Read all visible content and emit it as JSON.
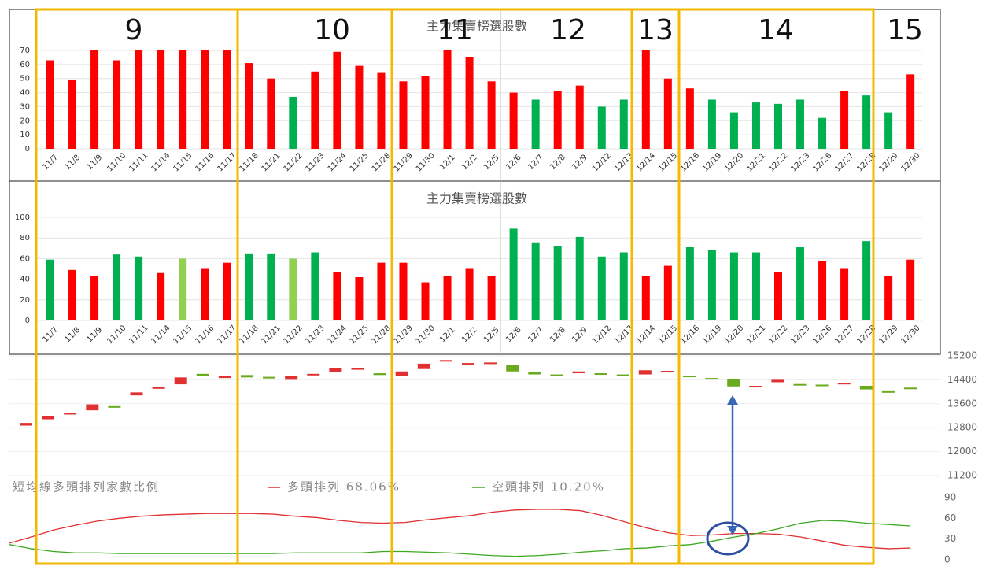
{
  "chart_data": [
    {
      "type": "bar",
      "title": "主力集賣榜選股數",
      "categories": [
        "11/7",
        "11/8",
        "11/9",
        "11/10",
        "11/11",
        "11/14",
        "11/15",
        "11/16",
        "11/17",
        "11/18",
        "11/21",
        "11/22",
        "11/23",
        "11/24",
        "11/25",
        "11/28",
        "11/29",
        "11/30",
        "12/1",
        "12/2",
        "12/5",
        "12/6",
        "12/7",
        "12/8",
        "12/9",
        "12/12",
        "12/13",
        "12/14",
        "12/15",
        "12/16",
        "12/19",
        "12/20",
        "12/21",
        "12/22",
        "12/23",
        "12/26",
        "12/27",
        "12/28",
        "12/29",
        "12/30"
      ],
      "values": [
        63,
        49,
        70,
        63,
        70,
        70,
        70,
        70,
        70,
        61,
        50,
        37,
        55,
        69,
        59,
        54,
        48,
        52,
        70,
        65,
        48,
        40,
        35,
        41,
        45,
        30,
        35,
        70,
        50,
        43,
        35,
        26,
        33,
        32,
        35,
        22,
        41,
        38,
        26,
        53
      ],
      "colors": [
        "#ff0000",
        "#ff0000",
        "#ff0000",
        "#ff0000",
        "#ff0000",
        "#ff0000",
        "#ff0000",
        "#ff0000",
        "#ff0000",
        "#ff0000",
        "#ff0000",
        "#00b050",
        "#ff0000",
        "#ff0000",
        "#ff0000",
        "#ff0000",
        "#ff0000",
        "#ff0000",
        "#ff0000",
        "#ff0000",
        "#ff0000",
        "#ff0000",
        "#00b050",
        "#ff0000",
        "#ff0000",
        "#00b050",
        "#00b050",
        "#ff0000",
        "#ff0000",
        "#ff0000",
        "#00b050",
        "#00b050",
        "#00b050",
        "#00b050",
        "#00b050",
        "#00b050",
        "#ff0000",
        "#00b050",
        "#00b050",
        "#ff0000"
      ],
      "ylim": [
        0,
        70
      ],
      "yticks": [
        0,
        10,
        20,
        30,
        40,
        50,
        60,
        70
      ],
      "grid": true
    },
    {
      "type": "bar",
      "title": "主力集賣榜選股數",
      "categories": [
        "11/7",
        "11/8",
        "11/9",
        "11/10",
        "11/11",
        "11/14",
        "11/15",
        "11/16",
        "11/17",
        "11/18",
        "11/21",
        "11/22",
        "11/23",
        "11/24",
        "11/25",
        "11/28",
        "11/29",
        "11/30",
        "12/1",
        "12/2",
        "12/5",
        "12/6",
        "12/7",
        "12/8",
        "12/9",
        "12/12",
        "12/13",
        "12/14",
        "12/15",
        "12/16",
        "12/19",
        "12/20",
        "12/21",
        "12/22",
        "12/23",
        "12/26",
        "12/27",
        "12/28",
        "12/29",
        "12/30"
      ],
      "values": [
        59,
        49,
        43,
        64,
        62,
        46,
        60,
        50,
        56,
        65,
        65,
        60,
        66,
        47,
        42,
        56,
        56,
        37,
        43,
        50,
        43,
        89,
        75,
        72,
        81,
        62,
        66,
        43,
        53,
        71,
        68,
        66,
        66,
        47,
        71,
        58,
        50,
        77,
        43,
        59
      ],
      "colors": [
        "#00b050",
        "#ff0000",
        "#ff0000",
        "#00b050",
        "#00b050",
        "#ff0000",
        "#92d050",
        "#ff0000",
        "#ff0000",
        "#00b050",
        "#00b050",
        "#92d050",
        "#00b050",
        "#ff0000",
        "#ff0000",
        "#ff0000",
        "#ff0000",
        "#ff0000",
        "#ff0000",
        "#ff0000",
        "#ff0000",
        "#00b050",
        "#00b050",
        "#00b050",
        "#00b050",
        "#00b050",
        "#00b050",
        "#ff0000",
        "#ff0000",
        "#00b050",
        "#00b050",
        "#00b050",
        "#00b050",
        "#ff0000",
        "#00b050",
        "#ff0000",
        "#ff0000",
        "#00b050",
        "#ff0000",
        "#ff0000"
      ],
      "ylim": [
        0,
        100
      ],
      "yticks": [
        0,
        20,
        40,
        60,
        80,
        100
      ],
      "grid": true
    },
    {
      "type": "candlestick",
      "open": [
        12870,
        13080,
        13240,
        13380,
        13520,
        13880,
        14100,
        14250,
        14600,
        14460,
        14560,
        14500,
        14400,
        14580,
        14660,
        14760,
        14620,
        14520,
        14760,
        15020,
        14920,
        14960,
        14900,
        14660,
        14580,
        14620,
        14620,
        14580,
        14580,
        14680,
        14540,
        14460,
        14420,
        14180,
        14320,
        14260,
        14240,
        14260,
        14200,
        14020,
        14140
      ],
      "close": [
        12960,
        13180,
        13300,
        13580,
        13480,
        13980,
        14160,
        14480,
        14520,
        14520,
        14480,
        14460,
        14520,
        14600,
        14780,
        14790,
        14560,
        14680,
        14940,
        15060,
        14960,
        14980,
        14680,
        14580,
        14520,
        14680,
        14580,
        14520,
        14720,
        14700,
        14500,
        14420,
        14180,
        14200,
        14400,
        14220,
        14220,
        14300,
        14080,
        13990,
        14100
      ],
      "up_color": "#e03030",
      "down_color": "#6aaa1e",
      "ylim": [
        11200,
        15200
      ],
      "yticks": [
        11200,
        12000,
        12800,
        13600,
        14400,
        15200
      ],
      "grid": true
    },
    {
      "type": "line",
      "title": "短均線多頭排列家數比例",
      "series": [
        {
          "name": "多頭排列 68.06%",
          "color": "#e03030",
          "values": [
            24,
            33,
            43,
            50,
            56,
            60,
            63,
            65,
            66,
            67,
            67,
            67,
            66,
            63,
            61,
            57,
            54,
            53,
            54,
            58,
            61,
            64,
            69,
            72,
            73,
            73,
            71,
            64,
            55,
            46,
            39,
            35,
            36,
            38,
            38,
            37,
            33,
            27,
            21,
            18,
            16,
            17
          ]
        },
        {
          "name": "空頭排列 10.20%",
          "color": "#3aaa1e",
          "values": [
            22,
            16,
            12,
            10,
            10,
            9,
            9,
            9,
            9,
            9,
            9,
            9,
            9,
            10,
            10,
            10,
            10,
            12,
            12,
            11,
            10,
            8,
            6,
            5,
            6,
            8,
            11,
            13,
            16,
            17,
            20,
            22,
            27,
            33,
            38,
            45,
            53,
            57,
            56,
            53,
            51,
            49
          ]
        }
      ],
      "ylim": [
        0,
        90
      ],
      "yticks": [
        0,
        30,
        60,
        90
      ]
    }
  ],
  "annotations": {
    "week_labels": [
      "9",
      "10",
      "11",
      "12",
      "13",
      "14",
      "15"
    ]
  }
}
